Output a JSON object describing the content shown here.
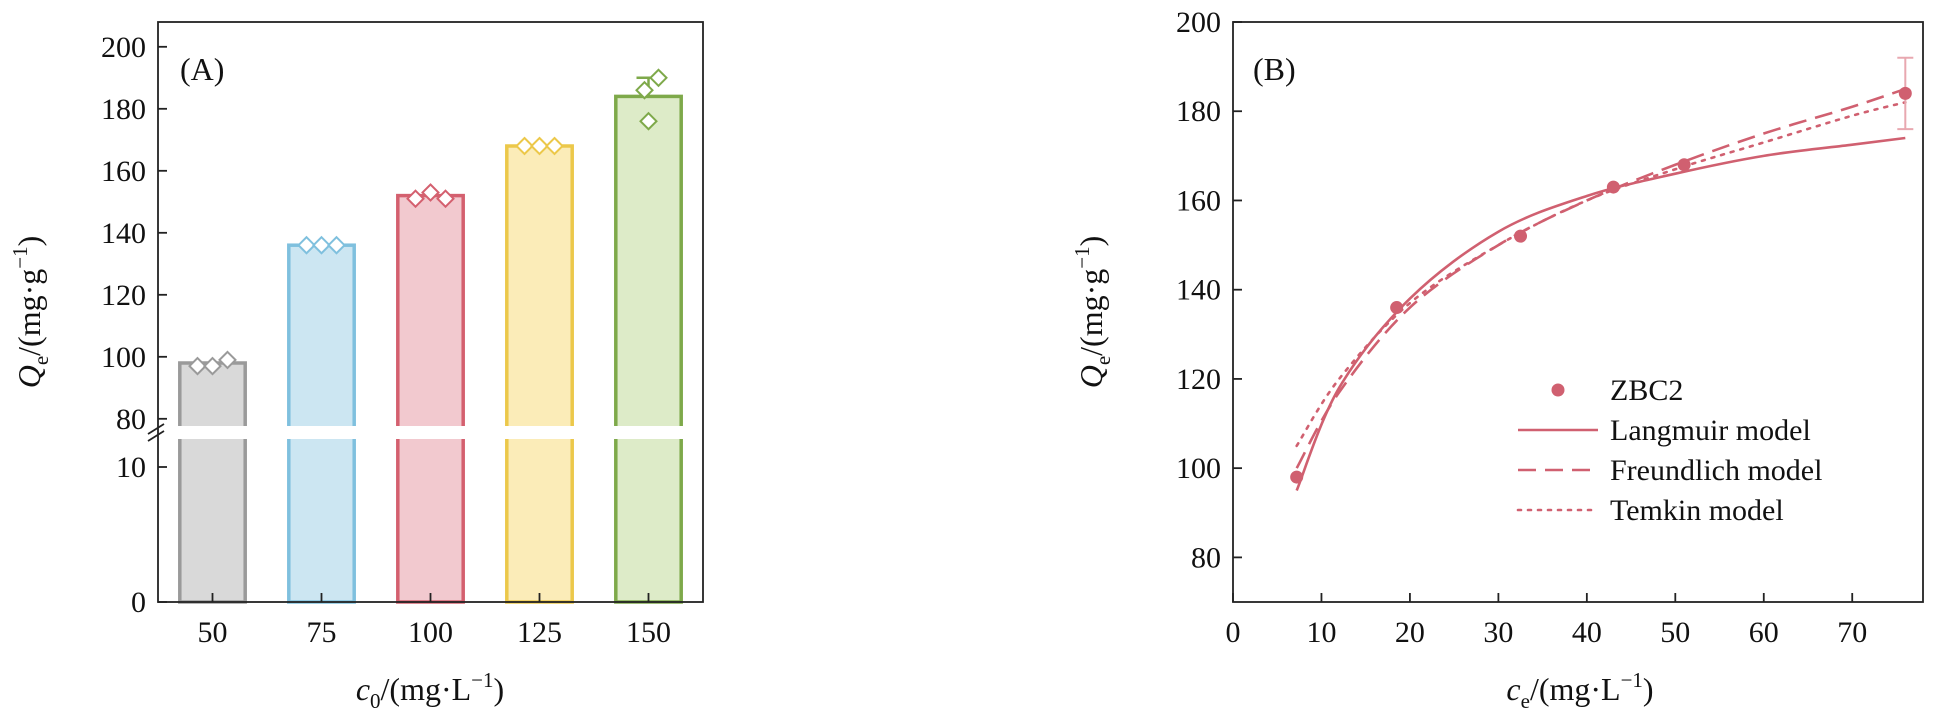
{
  "chart_data": [
    {
      "panel_label": "(A)",
      "type": "bar",
      "xlabel_main": "c",
      "xlabel_sub": "0",
      "xlabel_unit": "/(mg·L",
      "xlabel_exp": "−1",
      "xlabel_close": ")",
      "ylabel_main": "Q",
      "ylabel_sub": "e",
      "ylabel_unit": "/(mg·g",
      "ylabel_exp": "−1",
      "ylabel_close": ")",
      "categories": [
        "50",
        "75",
        "100",
        "125",
        "150"
      ],
      "values": [
        98,
        136,
        152,
        168,
        184
      ],
      "error": [
        0,
        0,
        0,
        0,
        6
      ],
      "replicates": [
        [
          97,
          97,
          99
        ],
        [
          136,
          136,
          136
        ],
        [
          151,
          153,
          151
        ],
        [
          168,
          168,
          168
        ],
        [
          186,
          190,
          176
        ]
      ],
      "colors_fill": [
        "#d9d9d9",
        "#cce6f2",
        "#f2c9cf",
        "#fbecb8",
        "#ddebc8"
      ],
      "colors_edge": [
        "#9a9a9a",
        "#7fc0de",
        "#d4606f",
        "#ecc84a",
        "#7ea94a"
      ],
      "ylim_upper": [
        78,
        208
      ],
      "yticks_upper": [
        "80",
        "100",
        "120",
        "140",
        "160",
        "180",
        "200"
      ],
      "ylim_lower": [
        0,
        12
      ],
      "yticks_lower": [
        "0",
        "10"
      ],
      "axis_break": true
    },
    {
      "panel_label": "(B)",
      "type": "scatter+line",
      "xlabel_main": "c",
      "xlabel_sub": "e",
      "xlabel_unit": "/(mg·L",
      "xlabel_exp": "−1",
      "xlabel_close": ")",
      "ylabel_main": "Q",
      "ylabel_sub": "e",
      "ylabel_unit": "/(mg·g",
      "ylabel_exp": "−1",
      "ylabel_close": ")",
      "xlim": [
        0,
        78
      ],
      "ylim": [
        70,
        200
      ],
      "xticks": [
        0,
        10,
        20,
        30,
        40,
        50,
        60,
        70
      ],
      "yticks": [
        80,
        100,
        120,
        140,
        160,
        180,
        200
      ],
      "color": "#d06070",
      "legend_position": "lower-right",
      "series": [
        {
          "name": "ZBC2",
          "kind": "points",
          "x": [
            7.2,
            18.5,
            32.5,
            43.0,
            51.0,
            76.0
          ],
          "y": [
            98,
            136,
            152,
            163,
            168,
            184
          ],
          "error": [
            0,
            0,
            0,
            0,
            0,
            8
          ]
        },
        {
          "name": "Langmuir model",
          "kind": "line",
          "style": "solid",
          "x": [
            7.2,
            12,
            20,
            30,
            40,
            50,
            60,
            70,
            76
          ],
          "y": [
            95,
            118,
            138,
            153,
            161,
            166,
            170,
            172.5,
            174
          ]
        },
        {
          "name": "Freundlich model",
          "kind": "line",
          "style": "dashed",
          "x": [
            7.2,
            12,
            20,
            30,
            40,
            50,
            60,
            70,
            76
          ],
          "y": [
            100,
            117,
            136,
            150,
            160,
            168,
            175,
            181,
            185
          ]
        },
        {
          "name": "Temkin model",
          "kind": "line",
          "style": "dotted",
          "x": [
            7.2,
            12,
            20,
            30,
            40,
            50,
            60,
            70,
            76
          ],
          "y": [
            105,
            120,
            137,
            150,
            160,
            167,
            173,
            179,
            182
          ]
        }
      ]
    }
  ]
}
